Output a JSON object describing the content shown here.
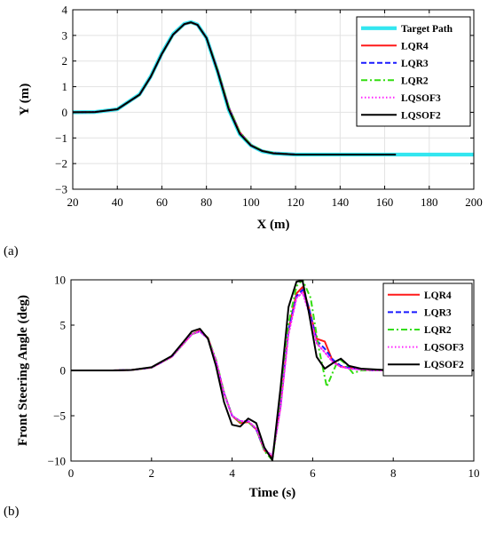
{
  "panel_labels": [
    "(a)",
    "(b)"
  ],
  "series_colors": {
    "Target Path": "#33e6f0",
    "LQR4": "#ff1a1a",
    "LQR3": "#1a1aff",
    "LQR2": "#33dd11",
    "LQSOF3": "#ff22ff",
    "LQSOF2": "#000000"
  },
  "chart_data": [
    {
      "panel": "(a)",
      "type": "line",
      "xlabel": "X (m)",
      "ylabel": "Y (m)",
      "xlim": [
        20,
        200
      ],
      "ylim": [
        -3,
        4
      ],
      "xticks": [
        20,
        40,
        60,
        80,
        100,
        120,
        140,
        160,
        180,
        200
      ],
      "yticks": [
        -3,
        -2,
        -1,
        0,
        1,
        2,
        3,
        4
      ],
      "grid": true,
      "legend_position": "top-right",
      "series": [
        {
          "name": "Target Path",
          "style": "thick-solid",
          "x": [
            20,
            30,
            40,
            50,
            55,
            60,
            65,
            70,
            73,
            76,
            80,
            85,
            90,
            95,
            100,
            105,
            110,
            120,
            130,
            140,
            150,
            160,
            170,
            180,
            190,
            200
          ],
          "y": [
            0,
            0.01,
            0.12,
            0.7,
            1.4,
            2.3,
            3.05,
            3.45,
            3.52,
            3.42,
            2.9,
            1.6,
            0.1,
            -0.85,
            -1.3,
            -1.52,
            -1.6,
            -1.65,
            -1.65,
            -1.65,
            -1.65,
            -1.65,
            -1.65,
            -1.65,
            -1.65,
            -1.65
          ]
        },
        {
          "name": "LQR4",
          "style": "solid",
          "x": [
            20,
            30,
            40,
            50,
            55,
            60,
            65,
            70,
            73,
            76,
            80,
            85,
            90,
            95,
            100,
            105,
            110,
            120,
            130,
            140,
            150,
            160,
            165
          ],
          "y": [
            0,
            0.01,
            0.12,
            0.68,
            1.38,
            2.27,
            3.02,
            3.43,
            3.5,
            3.41,
            2.9,
            1.65,
            0.2,
            -0.78,
            -1.28,
            -1.5,
            -1.59,
            -1.65,
            -1.65,
            -1.65,
            -1.65,
            -1.65,
            -1.65
          ]
        },
        {
          "name": "LQR3",
          "style": "dashed",
          "x": [
            20,
            30,
            40,
            50,
            55,
            60,
            65,
            70,
            73,
            76,
            80,
            85,
            90,
            95,
            100,
            105,
            110,
            120,
            130,
            140,
            150,
            160,
            165
          ],
          "y": [
            0,
            0.01,
            0.12,
            0.68,
            1.38,
            2.27,
            3.02,
            3.43,
            3.5,
            3.41,
            2.9,
            1.64,
            0.18,
            -0.8,
            -1.29,
            -1.5,
            -1.59,
            -1.65,
            -1.65,
            -1.65,
            -1.65,
            -1.65,
            -1.65
          ]
        },
        {
          "name": "LQR2",
          "style": "dashdot",
          "x": [
            20,
            30,
            40,
            50,
            55,
            60,
            65,
            70,
            73,
            76,
            80,
            85,
            90,
            95,
            100,
            105,
            110,
            120,
            130,
            140,
            150,
            160,
            165
          ],
          "y": [
            0,
            0.01,
            0.12,
            0.68,
            1.38,
            2.27,
            3.02,
            3.43,
            3.5,
            3.41,
            2.9,
            1.66,
            0.22,
            -0.77,
            -1.27,
            -1.49,
            -1.59,
            -1.65,
            -1.65,
            -1.65,
            -1.65,
            -1.65,
            -1.65
          ]
        },
        {
          "name": "LQSOF3",
          "style": "dotted",
          "x": [
            20,
            30,
            40,
            50,
            55,
            60,
            65,
            70,
            73,
            76,
            80,
            85,
            90,
            95,
            100,
            105,
            110,
            120,
            130,
            140,
            150,
            160,
            165
          ],
          "y": [
            0,
            0.01,
            0.12,
            0.69,
            1.39,
            2.28,
            3.03,
            3.44,
            3.51,
            3.41,
            2.9,
            1.62,
            0.15,
            -0.82,
            -1.3,
            -1.51,
            -1.6,
            -1.65,
            -1.65,
            -1.65,
            -1.65,
            -1.65,
            -1.65
          ]
        },
        {
          "name": "LQSOF2",
          "style": "solid",
          "x": [
            20,
            30,
            40,
            50,
            55,
            60,
            65,
            70,
            73,
            76,
            80,
            85,
            90,
            95,
            100,
            105,
            110,
            120,
            130,
            140,
            150,
            160,
            165
          ],
          "y": [
            0,
            0.01,
            0.12,
            0.69,
            1.39,
            2.28,
            3.03,
            3.44,
            3.51,
            3.41,
            2.9,
            1.6,
            0.12,
            -0.84,
            -1.3,
            -1.51,
            -1.6,
            -1.65,
            -1.65,
            -1.65,
            -1.65,
            -1.65,
            -1.65
          ]
        }
      ]
    },
    {
      "panel": "(b)",
      "type": "line",
      "xlabel": "Time (s)",
      "ylabel": "Front Steering Angle (deg)",
      "xlim": [
        0,
        10
      ],
      "ylim": [
        -10,
        10
      ],
      "xticks": [
        0,
        2,
        4,
        6,
        8,
        10
      ],
      "yticks": [
        -10,
        -5,
        0,
        5,
        10
      ],
      "grid": false,
      "legend_position": "top-right",
      "series": [
        {
          "name": "LQR4",
          "style": "solid",
          "x": [
            0,
            1,
            1.5,
            2,
            2.5,
            2.8,
            3.0,
            3.2,
            3.4,
            3.6,
            3.8,
            4.0,
            4.2,
            4.4,
            4.6,
            4.8,
            5.0,
            5.2,
            5.4,
            5.6,
            5.75,
            5.9,
            6.1,
            6.3,
            6.5,
            6.7,
            6.9,
            7.2,
            7.6,
            8.0,
            10.0
          ],
          "y": [
            0,
            0,
            0.05,
            0.3,
            1.5,
            3.0,
            4.0,
            4.4,
            3.6,
            1.0,
            -2.5,
            -5.0,
            -5.8,
            -5.7,
            -6.5,
            -8.8,
            -9.6,
            -4.0,
            4.5,
            8.5,
            9.2,
            7.0,
            3.5,
            3.2,
            1.0,
            0.4,
            0.3,
            0.1,
            0,
            0,
            0
          ]
        },
        {
          "name": "LQR3",
          "style": "dashed",
          "x": [
            0,
            1,
            1.5,
            2,
            2.5,
            2.8,
            3.0,
            3.2,
            3.4,
            3.6,
            3.8,
            4.0,
            4.2,
            4.4,
            4.6,
            4.8,
            5.0,
            5.2,
            5.4,
            5.6,
            5.75,
            5.9,
            6.1,
            6.3,
            6.5,
            6.7,
            6.9,
            7.2,
            7.6,
            8.0,
            10.0
          ],
          "y": [
            0,
            0,
            0.05,
            0.3,
            1.5,
            3.0,
            4.0,
            4.3,
            3.5,
            1.0,
            -2.5,
            -5.0,
            -5.6,
            -5.6,
            -6.5,
            -8.8,
            -9.5,
            -4.0,
            4.5,
            8.2,
            8.9,
            7.0,
            3.3,
            2.4,
            1.2,
            0.5,
            0.3,
            0.1,
            0,
            0,
            0
          ]
        },
        {
          "name": "LQR2",
          "style": "dashdot",
          "x": [
            0,
            1,
            1.5,
            2,
            2.5,
            2.8,
            3.0,
            3.2,
            3.4,
            3.6,
            3.8,
            4.0,
            4.2,
            4.4,
            4.6,
            4.8,
            5.0,
            5.2,
            5.4,
            5.6,
            5.75,
            5.95,
            6.15,
            6.35,
            6.5,
            6.65,
            6.8,
            7.0,
            7.2,
            7.6,
            8.0,
            10.0
          ],
          "y": [
            0,
            0,
            0.05,
            0.3,
            1.5,
            3.0,
            4.0,
            4.3,
            3.6,
            1.2,
            -2.4,
            -5.0,
            -5.7,
            -5.7,
            -6.4,
            -8.9,
            -9.9,
            -3.6,
            5.2,
            9.3,
            10.0,
            8.0,
            2.5,
            -1.8,
            -0.2,
            1.3,
            0.8,
            -0.3,
            0,
            0,
            0,
            0
          ]
        },
        {
          "name": "LQSOF3",
          "style": "dotted",
          "x": [
            0,
            1,
            1.5,
            2,
            2.5,
            2.8,
            3.0,
            3.2,
            3.4,
            3.6,
            3.8,
            4.0,
            4.2,
            4.4,
            4.6,
            4.8,
            5.0,
            5.2,
            5.4,
            5.6,
            5.75,
            5.9,
            6.1,
            6.3,
            6.5,
            6.7,
            6.9,
            7.2,
            7.6,
            8.0,
            10.0
          ],
          "y": [
            0,
            0,
            0.05,
            0.3,
            1.5,
            3.0,
            4.0,
            4.3,
            3.5,
            1.1,
            -2.5,
            -5.0,
            -5.6,
            -5.6,
            -6.4,
            -8.7,
            -9.4,
            -4.2,
            4.0,
            8.0,
            8.6,
            6.5,
            3.0,
            2.0,
            0.9,
            0.4,
            0.2,
            0.1,
            0,
            0,
            0
          ]
        },
        {
          "name": "LQSOF2",
          "style": "solid",
          "x": [
            0,
            1,
            1.5,
            2,
            2.5,
            2.8,
            3.0,
            3.2,
            3.4,
            3.6,
            3.8,
            4.0,
            4.2,
            4.4,
            4.6,
            4.8,
            5.0,
            5.2,
            5.4,
            5.6,
            5.75,
            5.9,
            6.1,
            6.3,
            6.5,
            6.7,
            6.9,
            7.2,
            7.6,
            8.0,
            10.0
          ],
          "y": [
            0,
            0,
            0.05,
            0.35,
            1.6,
            3.2,
            4.3,
            4.6,
            3.5,
            0.5,
            -3.5,
            -6.0,
            -6.2,
            -5.3,
            -5.8,
            -8.5,
            -9.9,
            -2.0,
            7.0,
            9.8,
            9.9,
            6.5,
            1.5,
            0.2,
            0.8,
            1.3,
            0.5,
            0.2,
            0.1,
            0,
            0
          ]
        }
      ]
    }
  ]
}
